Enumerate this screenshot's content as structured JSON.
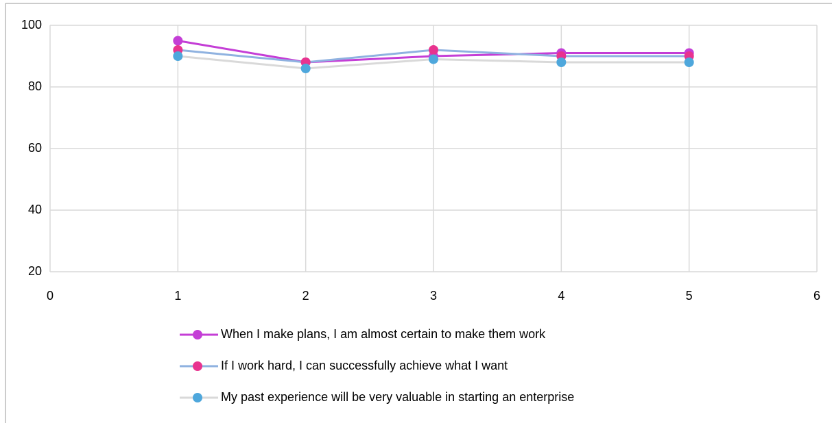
{
  "chart_data": {
    "type": "line",
    "x": [
      1,
      2,
      3,
      4,
      5
    ],
    "series": [
      {
        "name": "When I make plans, I am almost certain to make them work",
        "color": "#c43ed6",
        "marker_color": "#c43ed6",
        "values": [
          95,
          88,
          90,
          91,
          91
        ]
      },
      {
        "name": "If I work hard, I can successfully achieve what I want",
        "color": "#8fb2e0",
        "marker_color": "#e8338f",
        "values": [
          92,
          88,
          92,
          90,
          90
        ]
      },
      {
        "name": "My past experience will be very valuable in starting an enterprise",
        "color": "#d9d9d9",
        "marker_color": "#4ea7dc",
        "values": [
          90,
          86,
          89,
          88,
          88
        ]
      }
    ],
    "xlim": [
      0,
      6
    ],
    "xticks": [
      0,
      1,
      2,
      3,
      4,
      5,
      6
    ],
    "ylim": [
      20,
      100
    ],
    "yticks": [
      20,
      40,
      60,
      80,
      100
    ],
    "grid": true,
    "legend": "bottom"
  }
}
